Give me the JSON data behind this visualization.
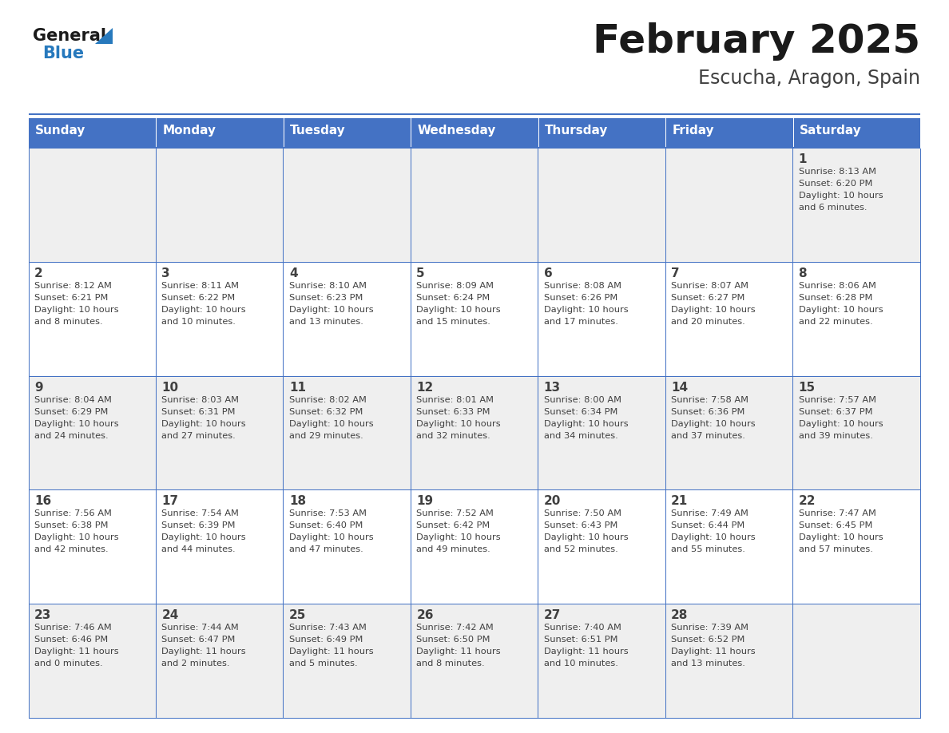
{
  "title": "February 2025",
  "subtitle": "Escucha, Aragon, Spain",
  "header_bg_color": "#4472C4",
  "header_text_color": "#FFFFFF",
  "day_names": [
    "Sunday",
    "Monday",
    "Tuesday",
    "Wednesday",
    "Thursday",
    "Friday",
    "Saturday"
  ],
  "row0_color": "#EFEFEF",
  "row1_color": "#FFFFFF",
  "border_color": "#4472C4",
  "text_color": "#404040",
  "day_num_color": "#404040",
  "title_color": "#1a1a1a",
  "subtitle_color": "#404040",
  "logo_general_color": "#1a1a1a",
  "logo_blue_color": "#2779BD",
  "calendar_data": [
    [
      null,
      null,
      null,
      null,
      null,
      null,
      {
        "day": 1,
        "sunrise": "8:13 AM",
        "sunset": "6:20 PM",
        "daylight_hours": 10,
        "daylight_minutes": 6
      }
    ],
    [
      {
        "day": 2,
        "sunrise": "8:12 AM",
        "sunset": "6:21 PM",
        "daylight_hours": 10,
        "daylight_minutes": 8
      },
      {
        "day": 3,
        "sunrise": "8:11 AM",
        "sunset": "6:22 PM",
        "daylight_hours": 10,
        "daylight_minutes": 10
      },
      {
        "day": 4,
        "sunrise": "8:10 AM",
        "sunset": "6:23 PM",
        "daylight_hours": 10,
        "daylight_minutes": 13
      },
      {
        "day": 5,
        "sunrise": "8:09 AM",
        "sunset": "6:24 PM",
        "daylight_hours": 10,
        "daylight_minutes": 15
      },
      {
        "day": 6,
        "sunrise": "8:08 AM",
        "sunset": "6:26 PM",
        "daylight_hours": 10,
        "daylight_minutes": 17
      },
      {
        "day": 7,
        "sunrise": "8:07 AM",
        "sunset": "6:27 PM",
        "daylight_hours": 10,
        "daylight_minutes": 20
      },
      {
        "day": 8,
        "sunrise": "8:06 AM",
        "sunset": "6:28 PM",
        "daylight_hours": 10,
        "daylight_minutes": 22
      }
    ],
    [
      {
        "day": 9,
        "sunrise": "8:04 AM",
        "sunset": "6:29 PM",
        "daylight_hours": 10,
        "daylight_minutes": 24
      },
      {
        "day": 10,
        "sunrise": "8:03 AM",
        "sunset": "6:31 PM",
        "daylight_hours": 10,
        "daylight_minutes": 27
      },
      {
        "day": 11,
        "sunrise": "8:02 AM",
        "sunset": "6:32 PM",
        "daylight_hours": 10,
        "daylight_minutes": 29
      },
      {
        "day": 12,
        "sunrise": "8:01 AM",
        "sunset": "6:33 PM",
        "daylight_hours": 10,
        "daylight_minutes": 32
      },
      {
        "day": 13,
        "sunrise": "8:00 AM",
        "sunset": "6:34 PM",
        "daylight_hours": 10,
        "daylight_minutes": 34
      },
      {
        "day": 14,
        "sunrise": "7:58 AM",
        "sunset": "6:36 PM",
        "daylight_hours": 10,
        "daylight_minutes": 37
      },
      {
        "day": 15,
        "sunrise": "7:57 AM",
        "sunset": "6:37 PM",
        "daylight_hours": 10,
        "daylight_minutes": 39
      }
    ],
    [
      {
        "day": 16,
        "sunrise": "7:56 AM",
        "sunset": "6:38 PM",
        "daylight_hours": 10,
        "daylight_minutes": 42
      },
      {
        "day": 17,
        "sunrise": "7:54 AM",
        "sunset": "6:39 PM",
        "daylight_hours": 10,
        "daylight_minutes": 44
      },
      {
        "day": 18,
        "sunrise": "7:53 AM",
        "sunset": "6:40 PM",
        "daylight_hours": 10,
        "daylight_minutes": 47
      },
      {
        "day": 19,
        "sunrise": "7:52 AM",
        "sunset": "6:42 PM",
        "daylight_hours": 10,
        "daylight_minutes": 49
      },
      {
        "day": 20,
        "sunrise": "7:50 AM",
        "sunset": "6:43 PM",
        "daylight_hours": 10,
        "daylight_minutes": 52
      },
      {
        "day": 21,
        "sunrise": "7:49 AM",
        "sunset": "6:44 PM",
        "daylight_hours": 10,
        "daylight_minutes": 55
      },
      {
        "day": 22,
        "sunrise": "7:47 AM",
        "sunset": "6:45 PM",
        "daylight_hours": 10,
        "daylight_minutes": 57
      }
    ],
    [
      {
        "day": 23,
        "sunrise": "7:46 AM",
        "sunset": "6:46 PM",
        "daylight_hours": 11,
        "daylight_minutes": 0
      },
      {
        "day": 24,
        "sunrise": "7:44 AM",
        "sunset": "6:47 PM",
        "daylight_hours": 11,
        "daylight_minutes": 2
      },
      {
        "day": 25,
        "sunrise": "7:43 AM",
        "sunset": "6:49 PM",
        "daylight_hours": 11,
        "daylight_minutes": 5
      },
      {
        "day": 26,
        "sunrise": "7:42 AM",
        "sunset": "6:50 PM",
        "daylight_hours": 11,
        "daylight_minutes": 8
      },
      {
        "day": 27,
        "sunrise": "7:40 AM",
        "sunset": "6:51 PM",
        "daylight_hours": 11,
        "daylight_minutes": 10
      },
      {
        "day": 28,
        "sunrise": "7:39 AM",
        "sunset": "6:52 PM",
        "daylight_hours": 11,
        "daylight_minutes": 13
      },
      null
    ]
  ],
  "figsize": [
    11.88,
    9.18
  ],
  "dpi": 100
}
